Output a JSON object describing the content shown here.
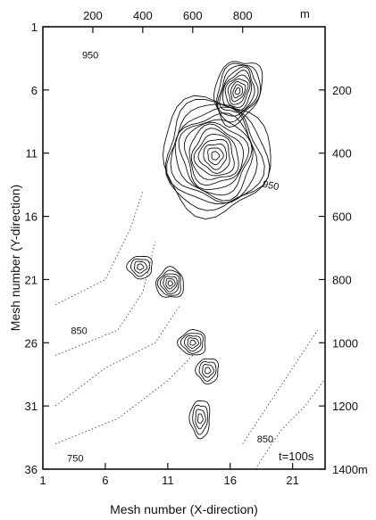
{
  "chart_data": {
    "type": "contour",
    "xlabel": "Mesh number (X-direction)",
    "ylabel": "Mesh number (Y-direction)",
    "x_ticks": [
      "1",
      "6",
      "11",
      "16",
      "21"
    ],
    "y_ticks": [
      "1",
      "6",
      "11",
      "16",
      "21",
      "26",
      "31",
      "36"
    ],
    "top_ticks": [
      "200",
      "400",
      "600",
      "800"
    ],
    "top_unit": "m",
    "right_ticks": [
      "200",
      "400",
      "600",
      "800",
      "1000",
      "1200",
      "1400m"
    ],
    "xlim": [
      1,
      23.6
    ],
    "ylim": [
      1,
      36
    ],
    "annotation": "t=100s",
    "contour_labels": [
      {
        "text": "950",
        "x": 4.8,
        "y": 3.5
      },
      {
        "text": "950",
        "x": 19.2,
        "y": 13.8
      },
      {
        "text": "850",
        "x": 3.9,
        "y": 25.3
      },
      {
        "text": "850",
        "x": 18.8,
        "y": 33.9
      },
      {
        "text": "750",
        "x": 3.6,
        "y": 35.4
      }
    ],
    "features": [
      {
        "name": "main-cluster",
        "x": 14.8,
        "y": 11.2,
        "rx": 4.3,
        "ry": 4.6,
        "rings": 14,
        "tilt": -10
      },
      {
        "name": "upper-plume",
        "x": 16.6,
        "y": 6.1,
        "rx": 1.8,
        "ry": 2.6,
        "rings": 10,
        "tilt": 20
      },
      {
        "name": "peak-left",
        "x": 8.8,
        "y": 20.0,
        "rx": 1.0,
        "ry": 0.9,
        "rings": 4,
        "tilt": 0
      },
      {
        "name": "peak-mid",
        "x": 11.2,
        "y": 21.3,
        "rx": 1.1,
        "ry": 1.2,
        "rings": 6,
        "tilt": 0
      },
      {
        "name": "peak-lower-a",
        "x": 13.0,
        "y": 26.0,
        "rx": 1.1,
        "ry": 1.0,
        "rings": 5,
        "tilt": 0
      },
      {
        "name": "peak-lower-b",
        "x": 14.2,
        "y": 28.2,
        "rx": 0.9,
        "ry": 1.0,
        "rings": 4,
        "tilt": 0
      },
      {
        "name": "peak-bottom",
        "x": 13.6,
        "y": 32.0,
        "rx": 0.8,
        "ry": 1.5,
        "rings": 4,
        "tilt": 0
      }
    ]
  }
}
